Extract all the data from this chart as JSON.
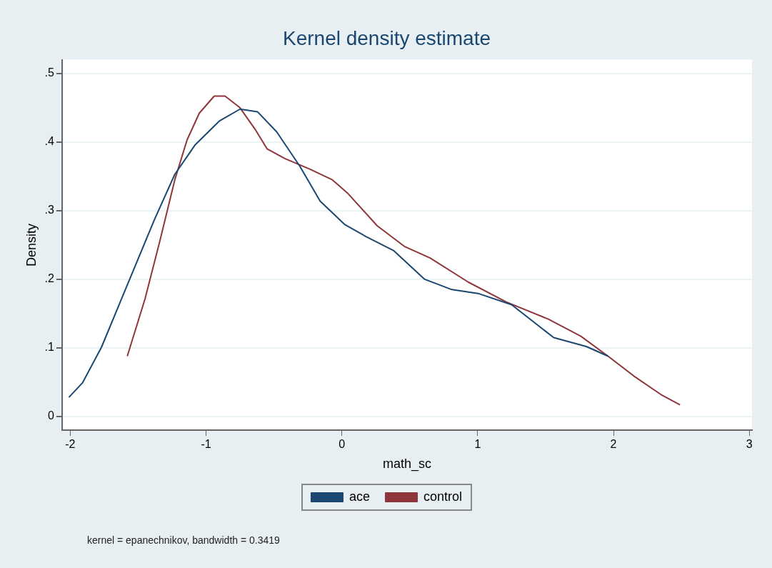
{
  "chart_data": {
    "type": "line",
    "title": "Kernel density estimate",
    "xlabel": "math_sc",
    "ylabel": "Density",
    "xlim": [
      -2.06,
      3.02
    ],
    "ylim": [
      -0.02,
      0.52
    ],
    "xticks": [
      -2,
      -1,
      0,
      1,
      2,
      3
    ],
    "yticks": [
      0,
      {
        "value": 0.1,
        "label": ".1"
      },
      {
        "value": 0.2,
        "label": ".2"
      },
      {
        "value": 0.3,
        "label": ".3"
      },
      {
        "value": 0.4,
        "label": ".4"
      },
      {
        "value": 0.5,
        "label": ".5"
      }
    ],
    "grid": "y",
    "legend": "bottom",
    "marker": "none",
    "line_style": "solid",
    "annotations": [
      "kernel = epanechnikov, bandwidth = 0.3419"
    ],
    "series": [
      {
        "name": "ace",
        "color": "#1a476f",
        "x": [
          -2.01,
          -1.91,
          -1.77,
          -1.64,
          -1.51,
          -1.38,
          -1.23,
          -1.08,
          -0.9,
          -0.75,
          -0.62,
          -0.48,
          -0.31,
          -0.16,
          0.02,
          0.18,
          0.38,
          0.61,
          0.81,
          1.01,
          1.25,
          1.56,
          1.8,
          1.96
        ],
        "values": [
          0.028,
          0.049,
          0.101,
          0.163,
          0.225,
          0.287,
          0.353,
          0.396,
          0.431,
          0.448,
          0.444,
          0.415,
          0.365,
          0.314,
          0.28,
          0.262,
          0.242,
          0.2,
          0.185,
          0.179,
          0.163,
          0.115,
          0.102,
          0.088
        ]
      },
      {
        "name": "control",
        "color": "#90353b",
        "x": [
          -1.58,
          -1.45,
          -1.34,
          -1.23,
          -1.14,
          -1.05,
          -0.94,
          -0.86,
          -0.75,
          -0.64,
          -0.55,
          -0.42,
          -0.24,
          -0.07,
          0.04,
          0.26,
          0.46,
          0.65,
          0.93,
          1.21,
          1.52,
          1.76,
          1.96,
          2.15,
          2.35,
          2.49
        ],
        "values": [
          0.088,
          0.171,
          0.256,
          0.345,
          0.403,
          0.442,
          0.467,
          0.467,
          0.45,
          0.419,
          0.39,
          0.376,
          0.361,
          0.345,
          0.326,
          0.278,
          0.248,
          0.231,
          0.196,
          0.167,
          0.142,
          0.117,
          0.088,
          0.059,
          0.032,
          0.017
        ]
      }
    ]
  }
}
